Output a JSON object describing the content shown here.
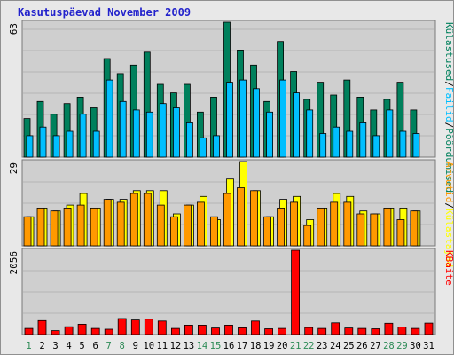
{
  "title": "Kasutuspäevad November 2009",
  "chart_data": [
    {
      "type": "bar",
      "name": "visits-panel",
      "ymax_label": "63",
      "ylim": [
        0,
        63
      ],
      "x": [
        "1",
        "2",
        "3",
        "4",
        "5",
        "6",
        "7",
        "8",
        "9",
        "10",
        "11",
        "12",
        "13",
        "14",
        "15",
        "16",
        "17",
        "18",
        "19",
        "20",
        "21",
        "22",
        "23",
        "24",
        "25",
        "26",
        "27",
        "28",
        "29",
        "30",
        "31"
      ],
      "weekend_days": [
        "1",
        "7",
        "8",
        "14",
        "15",
        "21",
        "22",
        "28",
        "29"
      ],
      "series": [
        {
          "name": "Külastused",
          "color": "#00805c",
          "values": [
            18,
            26,
            20,
            25,
            28,
            23,
            46,
            39,
            43,
            49,
            34,
            30,
            34,
            21,
            28,
            63,
            50,
            43,
            26,
            54,
            40,
            27,
            35,
            29,
            36,
            28,
            22,
            27,
            35,
            22,
            0
          ]
        },
        {
          "name": "Failid",
          "color": "#00bfff",
          "values": [
            10,
            14,
            10,
            12,
            20,
            12,
            36,
            26,
            22,
            21,
            25,
            23,
            16,
            9,
            10,
            35,
            36,
            32,
            21,
            36,
            30,
            22,
            11,
            14,
            12,
            16,
            10,
            22,
            12,
            11,
            0
          ]
        },
        {
          "name": "Pöördumised",
          "color": "#00805c",
          "values": [
            0,
            0,
            0,
            0,
            0,
            0,
            0,
            0,
            0,
            0,
            0,
            0,
            0,
            0,
            0,
            0,
            0,
            0,
            0,
            0,
            0,
            0,
            0,
            0,
            0,
            0,
            0,
            0,
            0,
            0,
            0
          ]
        }
      ],
      "legend_labels": [
        "Külastused",
        "Failid",
        "Pöördumised"
      ]
    },
    {
      "type": "bar",
      "name": "sites-panel",
      "ymax_label": "29",
      "ylim": [
        0,
        29
      ],
      "x": [
        "1",
        "2",
        "3",
        "4",
        "5",
        "6",
        "7",
        "8",
        "9",
        "10",
        "11",
        "12",
        "13",
        "14",
        "15",
        "16",
        "17",
        "18",
        "19",
        "20",
        "21",
        "22",
        "23",
        "24",
        "25",
        "26",
        "27",
        "28",
        "29",
        "30",
        "31"
      ],
      "series": [
        {
          "name": "Külastajad",
          "color": "#ffff00",
          "values": [
            10,
            13,
            12,
            14,
            18,
            13,
            16,
            16,
            19,
            19,
            19,
            11,
            14,
            17,
            9,
            23,
            29,
            19,
            10,
            16,
            17,
            9,
            13,
            18,
            17,
            12,
            11,
            13,
            13,
            12,
            0
          ]
        },
        {
          "name": "Arvutid",
          "color": "#ff9900",
          "values": [
            10,
            13,
            12,
            13,
            14,
            13,
            16,
            15,
            18,
            18,
            14,
            10,
            14,
            15,
            10,
            18,
            20,
            19,
            10,
            13,
            15,
            7,
            13,
            15,
            15,
            11,
            11,
            13,
            9,
            12,
            0
          ]
        }
      ],
      "legend_labels": [
        "Arvutid",
        "Külastajad"
      ]
    },
    {
      "type": "bar",
      "name": "kbytes-panel",
      "ymax_label": "2056",
      "ylim": [
        0,
        2056
      ],
      "x": [
        "1",
        "2",
        "3",
        "4",
        "5",
        "6",
        "7",
        "8",
        "9",
        "10",
        "11",
        "12",
        "13",
        "14",
        "15",
        "16",
        "17",
        "18",
        "19",
        "20",
        "21",
        "22",
        "23",
        "24",
        "25",
        "26",
        "27",
        "28",
        "29",
        "30",
        "31"
      ],
      "series": [
        {
          "name": "KBaite",
          "color": "#ff0000",
          "values": [
            150,
            340,
            95,
            190,
            250,
            150,
            130,
            390,
            355,
            375,
            330,
            150,
            230,
            230,
            160,
            230,
            165,
            330,
            140,
            150,
            2056,
            170,
            150,
            285,
            160,
            150,
            140,
            275,
            185,
            150,
            280
          ]
        }
      ],
      "legend_labels": [
        "KBaite"
      ]
    }
  ]
}
